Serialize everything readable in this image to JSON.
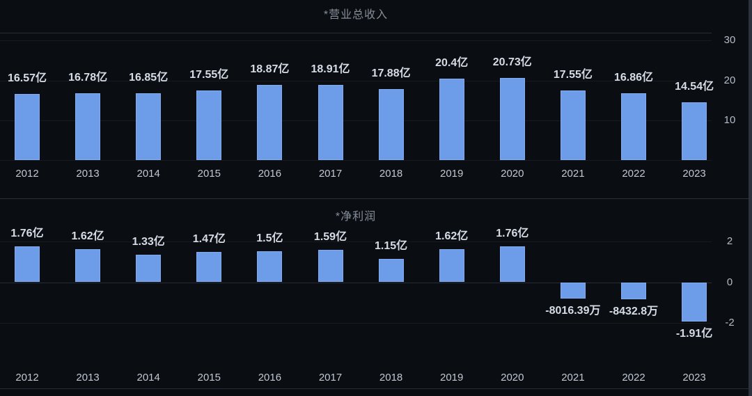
{
  "page": {
    "background": "#0a0d12",
    "bar_color": "#6d9ce9",
    "value_label_color": "#d5dce5",
    "title_color": "#868e98",
    "tick_color": "#b4bcc6",
    "grid_color": "#272e38"
  },
  "chart_data": [
    {
      "type": "bar",
      "title": "*营业总收入",
      "unit": "亿",
      "categories": [
        "2012",
        "2013",
        "2014",
        "2015",
        "2016",
        "2017",
        "2018",
        "2019",
        "2020",
        "2021",
        "2022",
        "2023"
      ],
      "values": [
        16.57,
        16.78,
        16.85,
        17.55,
        18.87,
        18.91,
        17.88,
        20.4,
        20.73,
        17.55,
        16.86,
        14.54
      ],
      "labels": [
        "16.57亿",
        "16.78亿",
        "16.85亿",
        "17.55亿",
        "18.87亿",
        "18.91亿",
        "17.88亿",
        "20.4亿",
        "20.73亿",
        "17.55亿",
        "16.86亿",
        "14.54亿"
      ],
      "yticks": [
        30,
        20,
        10
      ],
      "ylim": [
        0,
        32
      ],
      "grid": true,
      "legend_position": "none",
      "axis_side": "right"
    },
    {
      "type": "bar",
      "title": "*净利润",
      "unit": "亿",
      "categories": [
        "2012",
        "2013",
        "2014",
        "2015",
        "2016",
        "2017",
        "2018",
        "2019",
        "2020",
        "2021",
        "2022",
        "2023"
      ],
      "values": [
        1.76,
        1.62,
        1.33,
        1.47,
        1.5,
        1.59,
        1.15,
        1.62,
        1.76,
        -0.801639,
        -0.84328,
        -1.91
      ],
      "labels": [
        "1.76亿",
        "1.62亿",
        "1.33亿",
        "1.47亿",
        "1.5亿",
        "1.59亿",
        "1.15亿",
        "1.62亿",
        "1.76亿",
        "-8016.39万",
        "-8432.8万",
        "-1.91亿"
      ],
      "yticks": [
        2,
        0,
        -2
      ],
      "ylim": [
        -2.6,
        2.7
      ],
      "grid": true,
      "legend_position": "none",
      "axis_side": "right"
    }
  ]
}
